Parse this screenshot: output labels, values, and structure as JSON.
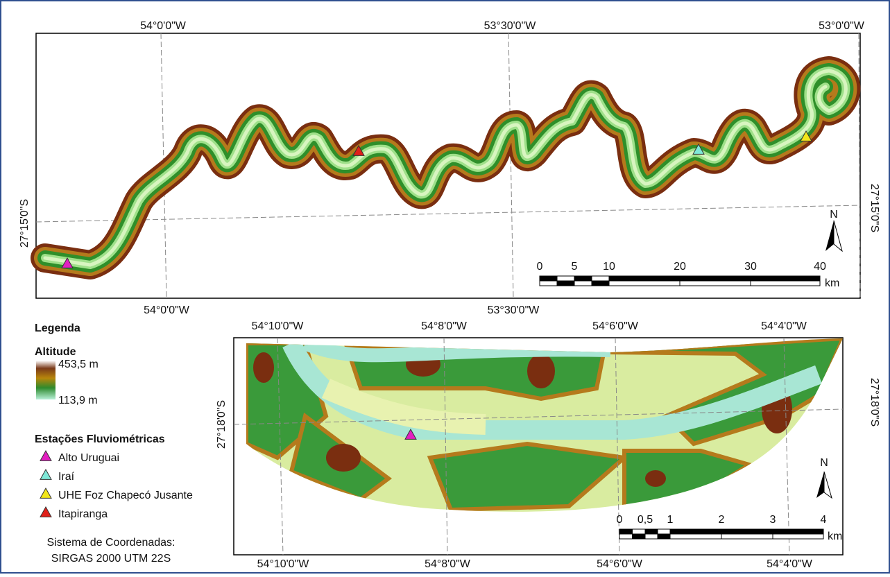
{
  "legend": {
    "title": "Legenda",
    "altitude_label": "Altitude",
    "altitude_max": "453,5 m",
    "altitude_min": "113,9 m",
    "stations_title": "Estações Fluviométricas",
    "stations": [
      {
        "label": "Alto Uruguai",
        "color": "#e21fc0"
      },
      {
        "label": "Iraí",
        "color": "#7fe8d8"
      },
      {
        "label": "UHE Foz Chapecó Jusante",
        "color": "#f2e61a"
      },
      {
        "label": "Itapiranga",
        "color": "#e0201a"
      }
    ],
    "crs_title": "Sistema de Coordenadas:",
    "crs": "SIRGAS 2000 UTM 22S"
  },
  "top_map": {
    "top_labels": [
      "54°0'0\"W",
      "53°30'0\"W",
      "53°0'0\"W"
    ],
    "bottom_labels": [
      "54°0'0\"W",
      "53°30'0\"W"
    ],
    "left_label": "27°15'0\"S",
    "right_label": "27°15'0\"S",
    "north": "N",
    "scale_labels": [
      "0",
      "5",
      "10",
      "20",
      "30",
      "40"
    ],
    "scale_unit": "km"
  },
  "bottom_map": {
    "top_labels": [
      "54°10'0\"W",
      "54°8'0\"W",
      "54°6'0\"W",
      "54°4'0\"W"
    ],
    "bottom_labels": [
      "54°10'0\"W",
      "54°8'0\"W",
      "54°6'0\"W",
      "54°4'0\"W"
    ],
    "left_label": "27°18'0\"S",
    "right_label": "27°18'0\"S",
    "north": "N",
    "scale_labels": [
      "0",
      "0,5",
      "1",
      "2",
      "3",
      "4"
    ],
    "scale_unit": "km"
  }
}
